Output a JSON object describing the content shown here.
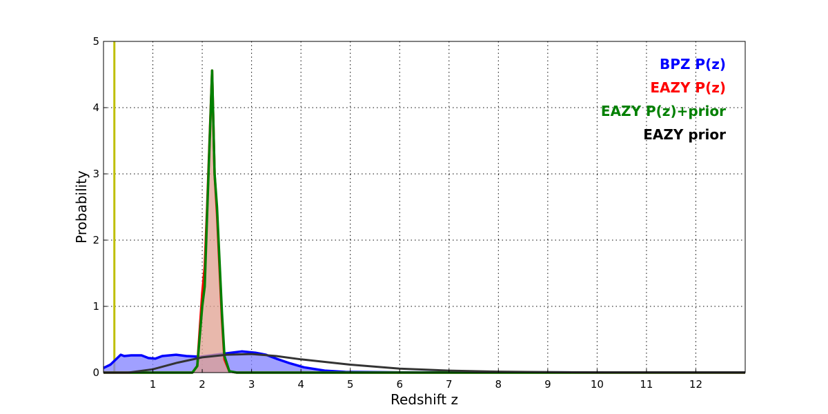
{
  "chart_data": {
    "type": "line",
    "xlabel": "Redshift z",
    "ylabel": "Probability",
    "xlim": [
      0,
      13
    ],
    "ylim": [
      0,
      5
    ],
    "grid": true,
    "legend_placement": "top-right",
    "xticks": [
      "1",
      "2",
      "3",
      "4",
      "5",
      "6",
      "7",
      "8",
      "9",
      "10",
      "11",
      "12"
    ],
    "yticks": [
      "0",
      "1",
      "2",
      "3",
      "4",
      "5"
    ],
    "vline": {
      "x": 0.22,
      "color": "#bfbf00"
    },
    "series": [
      {
        "name": "BPZ P(z)",
        "color": "#0000ff",
        "fill": "#8080ff",
        "filled": true,
        "x": [
          0,
          0.14,
          0.35,
          0.42,
          0.56,
          0.77,
          0.91,
          1.05,
          1.19,
          1.47,
          1.68,
          1.96,
          2.38,
          2.8,
          3.08,
          3.29,
          3.5,
          3.78,
          4.06,
          4.48,
          4.9,
          6,
          13
        ],
        "y": [
          0.07,
          0.12,
          0.27,
          0.25,
          0.26,
          0.26,
          0.22,
          0.21,
          0.25,
          0.27,
          0.25,
          0.24,
          0.28,
          0.32,
          0.3,
          0.27,
          0.21,
          0.14,
          0.08,
          0.03,
          0.01,
          0.004,
          0.002
        ]
      },
      {
        "name": "EAZY P(z)",
        "color": "#ff0000",
        "fill": "#e0a090",
        "filled": true,
        "x": [
          0,
          1.8,
          1.9,
          2.0,
          2.05,
          2.1,
          2.2,
          2.25,
          2.3,
          2.4,
          2.45,
          2.55,
          2.7,
          13
        ],
        "y": [
          0,
          0,
          0.1,
          1.2,
          1.6,
          2.5,
          4.56,
          3.0,
          2.4,
          0.8,
          0.2,
          0.02,
          0,
          0
        ]
      },
      {
        "name": "EAZY P(z)+prior",
        "color": "#008000",
        "filled": false,
        "x": [
          0,
          1.8,
          1.9,
          2.0,
          2.05,
          2.1,
          2.2,
          2.25,
          2.3,
          2.4,
          2.45,
          2.55,
          2.7,
          13
        ],
        "y": [
          0,
          0,
          0.1,
          1.0,
          1.3,
          2.4,
          4.56,
          3.0,
          2.5,
          0.9,
          0.25,
          0.02,
          0,
          0
        ]
      },
      {
        "name": "EAZY prior",
        "color": "#333333",
        "filled": false,
        "x": [
          0,
          0.5,
          1,
          1.5,
          2,
          2.5,
          3,
          3.5,
          4,
          5,
          6,
          7,
          8,
          9,
          10,
          13
        ],
        "y": [
          0,
          0,
          0.05,
          0.15,
          0.23,
          0.27,
          0.28,
          0.25,
          0.2,
          0.12,
          0.06,
          0.03,
          0.015,
          0.007,
          0.003,
          0
        ]
      }
    ]
  }
}
